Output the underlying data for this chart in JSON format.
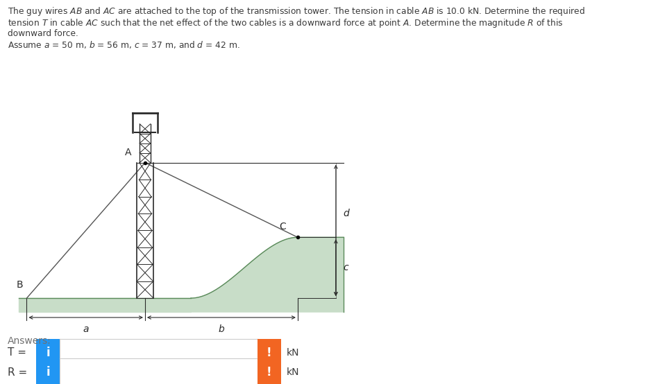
{
  "fig_width": 9.48,
  "fig_height": 5.54,
  "bg_color": "#ffffff",
  "text_color": "#3a3a3a",
  "tower_color": "#2a2a2a",
  "cable_color": "#555555",
  "ground_fill": "#c8ddc8",
  "ground_edge": "#5a8a5a",
  "arrow_color": "#2a2a2a",
  "label_color": "#2a2a2a",
  "box_blue": "#2196F3",
  "box_orange": "#F26522",
  "answers_label": "Answers:",
  "kN_label": "kN",
  "A_label": "A",
  "B_label": "B",
  "C_label": "C",
  "a_label": "a",
  "b_label": "b",
  "c_label": "c",
  "d_label": "d",
  "T_label": "T =",
  "R_label": "R ="
}
